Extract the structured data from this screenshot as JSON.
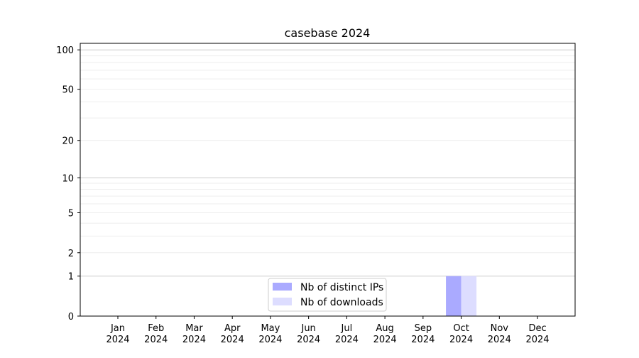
{
  "chart_data": {
    "type": "bar",
    "title": "casebase 2024",
    "xlabel": "",
    "ylabel": "",
    "y_scale": "log(1+y)",
    "ylim": [
      0,
      115
    ],
    "y_ticks": [
      0,
      1,
      2,
      5,
      10,
      20,
      50,
      100
    ],
    "grid": "horizontal, major and minor",
    "legend_position": "lower center",
    "categories": [
      "Jan\n2024",
      "Feb\n2024",
      "Mar\n2024",
      "Apr\n2024",
      "May\n2024",
      "Jun\n2024",
      "Jul\n2024",
      "Aug\n2024",
      "Sep\n2024",
      "Oct\n2024",
      "Nov\n2024",
      "Dec\n2024"
    ],
    "series": [
      {
        "name": "Nb of distinct IPs",
        "color": "#aaaaff",
        "values": [
          0,
          0,
          0,
          0,
          0,
          0,
          0,
          0,
          0,
          1,
          0,
          0
        ]
      },
      {
        "name": "Nb of downloads",
        "color": "#ddddff",
        "values": [
          0,
          0,
          0,
          0,
          0,
          0,
          0,
          0,
          0,
          1,
          0,
          0
        ]
      }
    ]
  }
}
